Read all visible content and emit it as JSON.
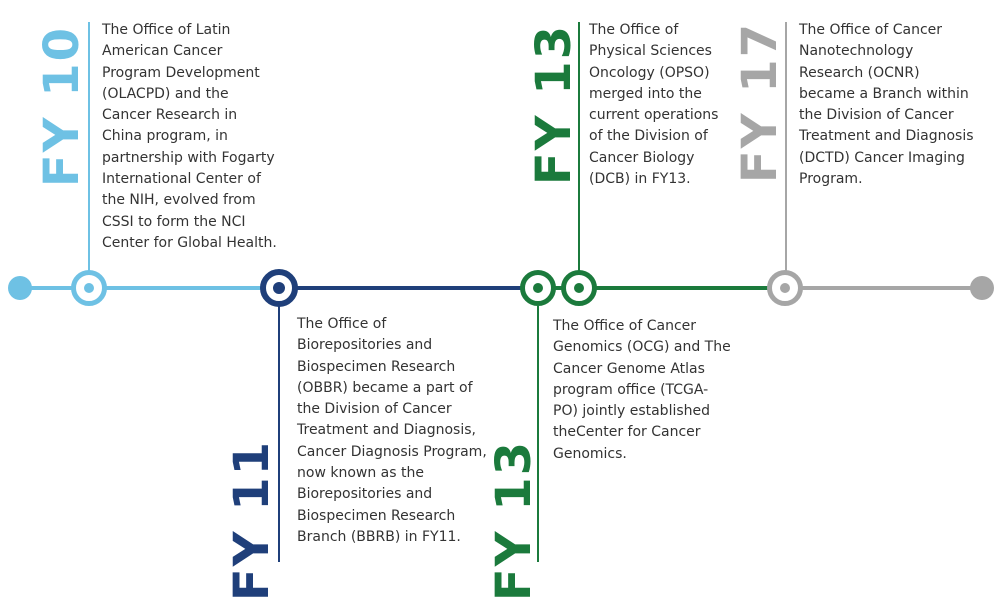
{
  "colors": {
    "fy10": "#6ec1e4",
    "fy11": "#1f3f7a",
    "fy13": "#1b7a3c",
    "fy17": "#a6a6a6",
    "text": "#333333"
  },
  "events": [
    {
      "year": "FY 10",
      "description": "The Office of Latin American Cancer Program Development (OLACPD) and the Cancer Research in China program, in partnership with Fogarty International Center of the NIH, evolved from CSSI to form the NCI Center for Global Health."
    },
    {
      "year": "FY 11",
      "description": "The Office of Biorepositories and Biospecimen Research (OBBR) became a part of the Division of Cancer Treatment and Diagnosis, Cancer Diagnosis Program, now known as the Biorepositories and Biospecimen Research Branch (BBRB) in FY11."
    },
    {
      "year": "FY 13",
      "description": "The Office of Cancer Genomics (OCG) and The Cancer Genome Atlas program office (TCGA-PO) jointly established theCenter for Cancer Genomics."
    },
    {
      "year": "FY 13",
      "description": "The Office of Physical Sciences Oncology (OPSO) merged into the current operations of the Division of Cancer Biology (DCB) in FY13."
    },
    {
      "year": "FY 17",
      "description": "The Office of Cancer Nanotechnology Research (OCNR) became a Branch within the Division of Cancer Treatment and Diagnosis (DCTD) Cancer Imaging Program."
    }
  ]
}
